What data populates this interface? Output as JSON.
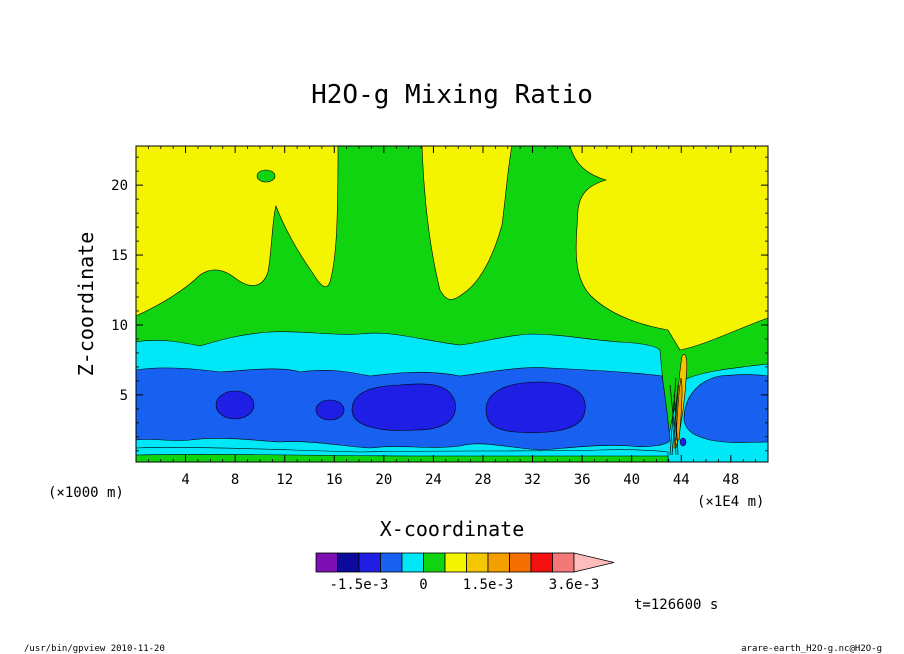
{
  "chart_data": {
    "type": "contour",
    "title": "H2O-g Mixing Ratio",
    "xlabel": "X-coordinate",
    "ylabel": "Z-coordinate",
    "x_unit_left": "(×1000 m)",
    "x_unit_right": "(×1E4 m)",
    "xlim": [
      0,
      51
    ],
    "ylim": [
      0.2,
      22.8
    ],
    "x_ticks": [
      "4",
      "8",
      "12",
      "16",
      "20",
      "24",
      "28",
      "32",
      "36",
      "40",
      "44",
      "48"
    ],
    "y_ticks": [
      "5",
      "10",
      "15",
      "20"
    ],
    "colorbar": {
      "colors": [
        "#7d0fb4",
        "#0c0a9b",
        "#1e1ee4",
        "#1860f0",
        "#00e8f8",
        "#10d410",
        "#f4f400",
        "#f4c800",
        "#f49e00",
        "#f46e00",
        "#f41010",
        "#f47878",
        "#ffbcbc"
      ],
      "tick_labels": [
        "-1.5e-3",
        "0",
        "1.5e-3",
        "3.6e-3"
      ]
    },
    "time_label": "t=126600 s"
  },
  "footer": {
    "left": "/usr/bin/gpview  2010-11-20",
    "right": "arare-earth_H2O-g.nc@H2O-g"
  }
}
